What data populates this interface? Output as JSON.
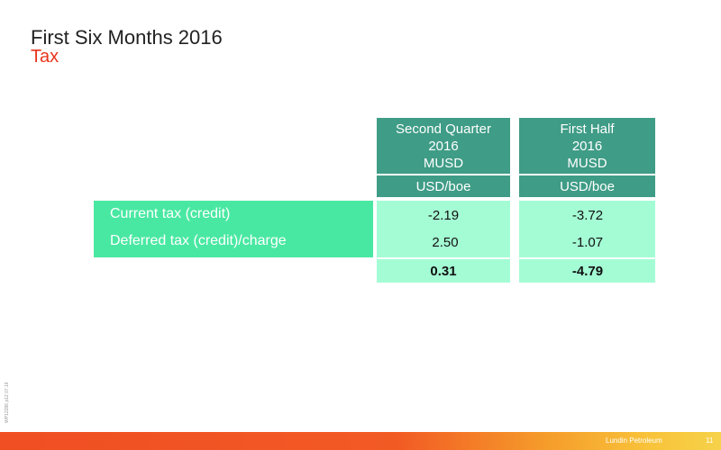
{
  "slide": {
    "title": "First Six Months 2016",
    "subtitle": "Tax",
    "side_code": "WP12286 p12 07.16"
  },
  "table": {
    "columns": [
      {
        "line1": "Second Quarter",
        "line2": "2016",
        "line3": "MUSD",
        "unit": "USD/boe"
      },
      {
        "line1": "First Half",
        "line2": "2016",
        "line3": "MUSD",
        "unit": "USD/boe"
      }
    ],
    "rows": [
      {
        "label": "Current tax (credit)",
        "values": [
          "-2.19",
          "-3.72"
        ]
      },
      {
        "label": "Deferred tax (credit)/charge",
        "values": [
          "2.50",
          "-1.07"
        ]
      }
    ],
    "totals": [
      "0.31",
      "-4.79"
    ]
  },
  "footer": {
    "company": "Lundin Petroleum",
    "page": "11"
  },
  "colors": {
    "header_teal": "#3f9c86",
    "label_green": "#49e8a2",
    "cell_mint": "#a4fcd5",
    "subtitle_red": "#e8341c"
  }
}
